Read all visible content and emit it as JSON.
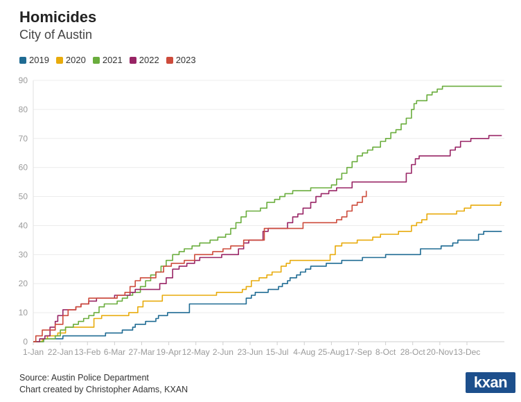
{
  "title": "Homicides",
  "subtitle": "City of Austin",
  "legend": [
    {
      "label": "2019",
      "color": "#1f6b93"
    },
    {
      "label": "2020",
      "color": "#e8ab0c"
    },
    {
      "label": "2021",
      "color": "#6aad3d"
    },
    {
      "label": "2022",
      "color": "#982465"
    },
    {
      "label": "2023",
      "color": "#cd4b3b"
    }
  ],
  "source": "Source: Austin Police Department",
  "credit": "Chart created by Christopher Adams, KXAN",
  "logo_text": "kxan",
  "chart_data": {
    "type": "line",
    "title": "Homicides",
    "subtitle": "City of Austin",
    "xlabel": "",
    "ylabel": "",
    "x_unit": "day of year",
    "xlim": [
      1,
      366
    ],
    "ylim": [
      0,
      90
    ],
    "yticks": [
      0,
      10,
      20,
      30,
      40,
      50,
      60,
      70,
      80,
      90
    ],
    "xticks": [
      {
        "day": 1,
        "label": "1-Jan"
      },
      {
        "day": 22,
        "label": "22-Jan"
      },
      {
        "day": 43,
        "label": "13-Feb"
      },
      {
        "day": 64,
        "label": "6-Mar"
      },
      {
        "day": 85,
        "label": "27-Mar"
      },
      {
        "day": 106,
        "label": "19-Apr"
      },
      {
        "day": 127,
        "label": "12-May"
      },
      {
        "day": 148,
        "label": "2-Jun"
      },
      {
        "day": 169,
        "label": "23-Jun"
      },
      {
        "day": 190,
        "label": "15-Jul"
      },
      {
        "day": 211,
        "label": "4-Aug"
      },
      {
        "day": 232,
        "label": "25-Aug"
      },
      {
        "day": 253,
        "label": "17-Sep"
      },
      {
        "day": 274,
        "label": "8-Oct"
      },
      {
        "day": 295,
        "label": "28-Oct"
      },
      {
        "day": 316,
        "label": "20-Nov"
      },
      {
        "day": 337,
        "label": "13-Dec"
      }
    ],
    "series": [
      {
        "name": "2019",
        "color": "#1f6b93",
        "points": [
          [
            1,
            0
          ],
          [
            4,
            0
          ],
          [
            9,
            1
          ],
          [
            22,
            1
          ],
          [
            24,
            2
          ],
          [
            55,
            2
          ],
          [
            57,
            3
          ],
          [
            68,
            3
          ],
          [
            70,
            4
          ],
          [
            76,
            4
          ],
          [
            78,
            5
          ],
          [
            80,
            6
          ],
          [
            86,
            6
          ],
          [
            88,
            7
          ],
          [
            94,
            7
          ],
          [
            96,
            8
          ],
          [
            98,
            9
          ],
          [
            103,
            9
          ],
          [
            105,
            10
          ],
          [
            120,
            10
          ],
          [
            122,
            13
          ],
          [
            163,
            13
          ],
          [
            166,
            15
          ],
          [
            170,
            16
          ],
          [
            173,
            17
          ],
          [
            180,
            17
          ],
          [
            183,
            18
          ],
          [
            191,
            19
          ],
          [
            194,
            20
          ],
          [
            198,
            21
          ],
          [
            200,
            22
          ],
          [
            205,
            23
          ],
          [
            208,
            24
          ],
          [
            212,
            25
          ],
          [
            216,
            26
          ],
          [
            224,
            26
          ],
          [
            228,
            27
          ],
          [
            236,
            27
          ],
          [
            240,
            28
          ],
          [
            252,
            28
          ],
          [
            256,
            29
          ],
          [
            270,
            29
          ],
          [
            274,
            30
          ],
          [
            298,
            30
          ],
          [
            301,
            32
          ],
          [
            314,
            32
          ],
          [
            317,
            33
          ],
          [
            326,
            34
          ],
          [
            330,
            35
          ],
          [
            342,
            35
          ],
          [
            346,
            37
          ],
          [
            350,
            38
          ],
          [
            364,
            38
          ]
        ]
      },
      {
        "name": "2020",
        "color": "#e8ab0c",
        "points": [
          [
            1,
            0
          ],
          [
            4,
            0
          ],
          [
            8,
            1
          ],
          [
            12,
            2
          ],
          [
            18,
            2
          ],
          [
            20,
            3
          ],
          [
            26,
            5
          ],
          [
            44,
            5
          ],
          [
            48,
            8
          ],
          [
            54,
            9
          ],
          [
            72,
            9
          ],
          [
            75,
            10
          ],
          [
            82,
            12
          ],
          [
            86,
            14
          ],
          [
            96,
            14
          ],
          [
            101,
            16
          ],
          [
            140,
            16
          ],
          [
            143,
            17
          ],
          [
            161,
            17
          ],
          [
            163,
            18
          ],
          [
            166,
            19
          ],
          [
            170,
            21
          ],
          [
            176,
            22
          ],
          [
            182,
            23
          ],
          [
            186,
            24
          ],
          [
            193,
            26
          ],
          [
            197,
            27
          ],
          [
            200,
            28
          ],
          [
            228,
            28
          ],
          [
            231,
            30
          ],
          [
            235,
            33
          ],
          [
            240,
            34
          ],
          [
            248,
            34
          ],
          [
            252,
            35
          ],
          [
            260,
            35
          ],
          [
            264,
            36
          ],
          [
            270,
            37
          ],
          [
            280,
            37
          ],
          [
            284,
            38
          ],
          [
            290,
            38
          ],
          [
            294,
            40
          ],
          [
            298,
            41
          ],
          [
            302,
            42
          ],
          [
            306,
            44
          ],
          [
            325,
            44
          ],
          [
            329,
            45
          ],
          [
            335,
            46
          ],
          [
            340,
            47
          ],
          [
            360,
            47
          ],
          [
            363,
            48
          ],
          [
            364,
            48
          ]
        ]
      },
      {
        "name": "2021",
        "color": "#6aad3d",
        "points": [
          [
            1,
            0
          ],
          [
            6,
            0
          ],
          [
            9,
            1
          ],
          [
            18,
            2
          ],
          [
            22,
            4
          ],
          [
            26,
            5
          ],
          [
            32,
            6
          ],
          [
            36,
            7
          ],
          [
            40,
            8
          ],
          [
            44,
            9
          ],
          [
            48,
            10
          ],
          [
            52,
            12
          ],
          [
            56,
            13
          ],
          [
            66,
            14
          ],
          [
            70,
            15
          ],
          [
            74,
            16
          ],
          [
            78,
            17
          ],
          [
            84,
            19
          ],
          [
            88,
            21
          ],
          [
            92,
            23
          ],
          [
            96,
            24
          ],
          [
            100,
            26
          ],
          [
            104,
            28
          ],
          [
            109,
            30
          ],
          [
            114,
            31
          ],
          [
            118,
            32
          ],
          [
            124,
            33
          ],
          [
            130,
            34
          ],
          [
            138,
            35
          ],
          [
            144,
            36
          ],
          [
            150,
            37
          ],
          [
            154,
            39
          ],
          [
            158,
            41
          ],
          [
            162,
            43
          ],
          [
            166,
            45
          ],
          [
            173,
            45
          ],
          [
            177,
            46
          ],
          [
            182,
            48
          ],
          [
            188,
            49
          ],
          [
            192,
            50
          ],
          [
            196,
            51
          ],
          [
            202,
            52
          ],
          [
            212,
            52
          ],
          [
            216,
            53
          ],
          [
            228,
            53
          ],
          [
            232,
            54
          ],
          [
            236,
            56
          ],
          [
            240,
            58
          ],
          [
            244,
            60
          ],
          [
            248,
            62
          ],
          [
            252,
            64
          ],
          [
            256,
            65
          ],
          [
            260,
            66
          ],
          [
            264,
            67
          ],
          [
            270,
            69
          ],
          [
            274,
            70
          ],
          [
            278,
            72
          ],
          [
            282,
            73
          ],
          [
            286,
            75
          ],
          [
            290,
            77
          ],
          [
            294,
            80
          ],
          [
            296,
            82
          ],
          [
            298,
            83
          ],
          [
            304,
            83
          ],
          [
            306,
            85
          ],
          [
            310,
            86
          ],
          [
            314,
            87
          ],
          [
            318,
            88
          ],
          [
            364,
            88
          ]
        ]
      },
      {
        "name": "2022",
        "color": "#982465",
        "points": [
          [
            1,
            0
          ],
          [
            4,
            0
          ],
          [
            6,
            1
          ],
          [
            10,
            2
          ],
          [
            14,
            5
          ],
          [
            18,
            7
          ],
          [
            20,
            9
          ],
          [
            24,
            11
          ],
          [
            30,
            11
          ],
          [
            34,
            12
          ],
          [
            38,
            13
          ],
          [
            44,
            14
          ],
          [
            50,
            15
          ],
          [
            60,
            15
          ],
          [
            64,
            16
          ],
          [
            72,
            16
          ],
          [
            76,
            17
          ],
          [
            80,
            18
          ],
          [
            96,
            18
          ],
          [
            99,
            20
          ],
          [
            104,
            22
          ],
          [
            109,
            25
          ],
          [
            114,
            26
          ],
          [
            120,
            27
          ],
          [
            126,
            28
          ],
          [
            130,
            29
          ],
          [
            144,
            29
          ],
          [
            147,
            30
          ],
          [
            155,
            30
          ],
          [
            160,
            32
          ],
          [
            164,
            34
          ],
          [
            168,
            35
          ],
          [
            176,
            35
          ],
          [
            179,
            38
          ],
          [
            183,
            39
          ],
          [
            195,
            39
          ],
          [
            198,
            41
          ],
          [
            202,
            43
          ],
          [
            206,
            44
          ],
          [
            210,
            46
          ],
          [
            216,
            48
          ],
          [
            220,
            50
          ],
          [
            224,
            51
          ],
          [
            230,
            52
          ],
          [
            236,
            53
          ],
          [
            244,
            53
          ],
          [
            248,
            55
          ],
          [
            286,
            55
          ],
          [
            290,
            58
          ],
          [
            294,
            61
          ],
          [
            297,
            63
          ],
          [
            300,
            64
          ],
          [
            320,
            64
          ],
          [
            324,
            66
          ],
          [
            328,
            67
          ],
          [
            332,
            69
          ],
          [
            340,
            70
          ],
          [
            350,
            70
          ],
          [
            354,
            71
          ],
          [
            364,
            71
          ]
        ]
      },
      {
        "name": "2023",
        "color": "#cd4b3b",
        "points": [
          [
            1,
            0
          ],
          [
            3,
            2
          ],
          [
            8,
            4
          ],
          [
            14,
            4
          ],
          [
            18,
            6
          ],
          [
            24,
            9
          ],
          [
            28,
            11
          ],
          [
            34,
            12
          ],
          [
            38,
            13
          ],
          [
            44,
            15
          ],
          [
            60,
            15
          ],
          [
            66,
            16
          ],
          [
            72,
            17
          ],
          [
            76,
            19
          ],
          [
            80,
            21
          ],
          [
            84,
            22
          ],
          [
            92,
            22
          ],
          [
            96,
            24
          ],
          [
            102,
            26
          ],
          [
            108,
            27
          ],
          [
            114,
            27
          ],
          [
            118,
            28
          ],
          [
            126,
            30
          ],
          [
            134,
            30
          ],
          [
            140,
            31
          ],
          [
            148,
            32
          ],
          [
            154,
            33
          ],
          [
            160,
            33
          ],
          [
            164,
            35
          ],
          [
            176,
            35
          ],
          [
            180,
            39
          ],
          [
            206,
            39
          ],
          [
            210,
            41
          ],
          [
            232,
            41
          ],
          [
            236,
            42
          ],
          [
            240,
            43
          ],
          [
            244,
            45
          ],
          [
            248,
            47
          ],
          [
            252,
            48
          ],
          [
            256,
            50
          ],
          [
            259,
            52
          ]
        ]
      }
    ]
  }
}
